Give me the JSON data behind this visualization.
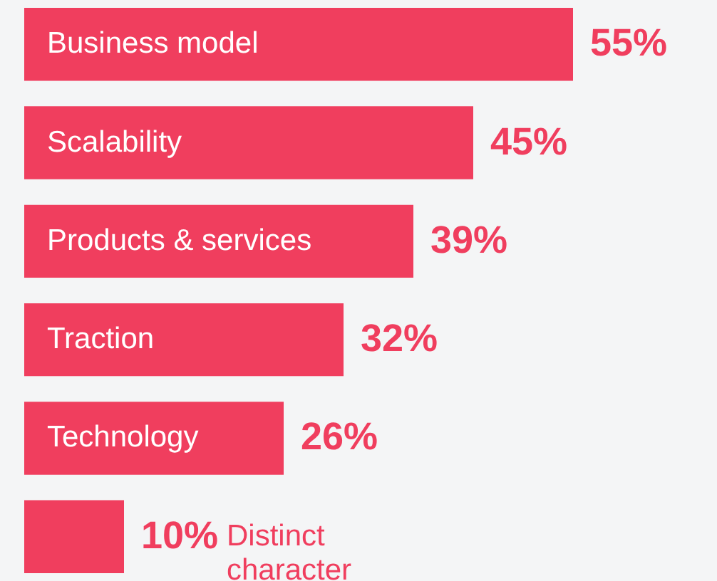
{
  "chart_data": {
    "type": "bar",
    "orientation": "horizontal",
    "categories": [
      "Business model",
      "Scalability",
      "Products & services",
      "Traction",
      "Technology",
      "Distinct character"
    ],
    "values": [
      55,
      45,
      39,
      32,
      26,
      10
    ],
    "value_labels": [
      "55%",
      "45%",
      "39%",
      "32%",
      "26%",
      "10%"
    ],
    "color": "#f03e5e"
  }
}
